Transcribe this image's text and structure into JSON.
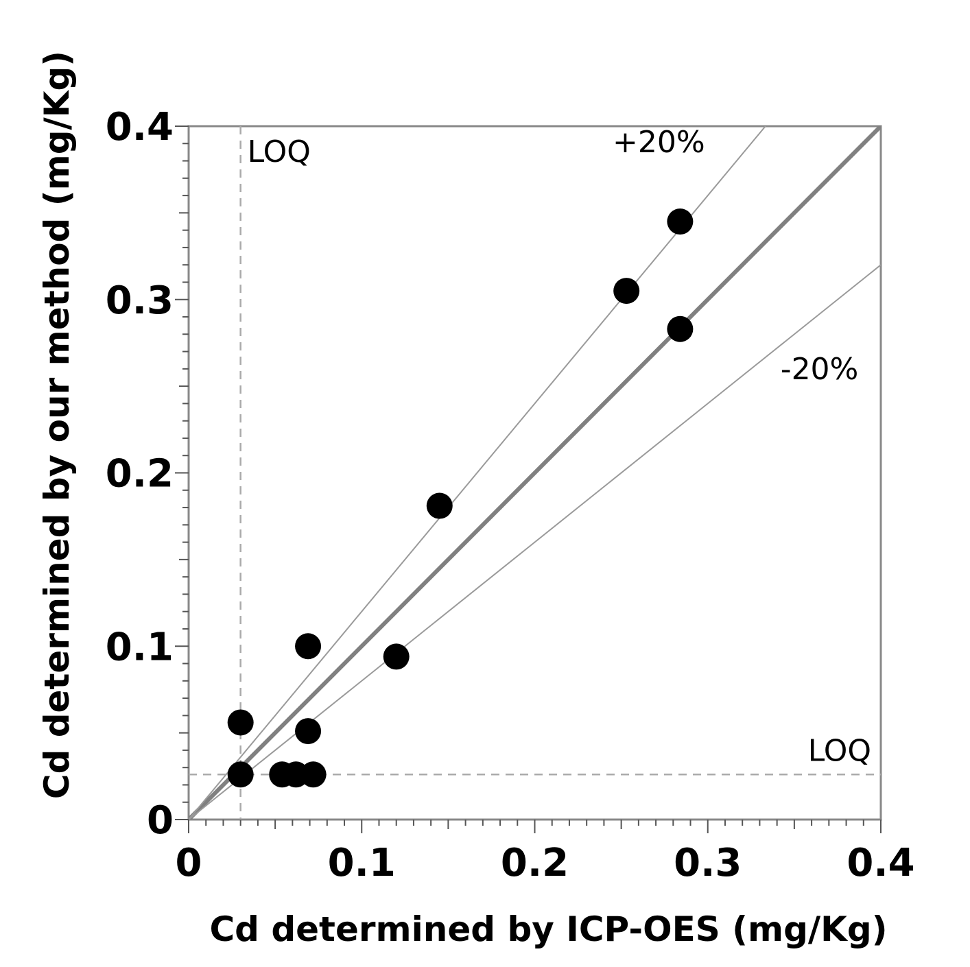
{
  "chart_data": {
    "type": "scatter",
    "xlabel": "Cd determined by ICP-OES (mg/Kg)",
    "ylabel": "Cd determined by our method (mg/Kg)",
    "xlim": [
      0,
      0.4
    ],
    "ylim": [
      0,
      0.4
    ],
    "xticks": [
      "0",
      "0.1",
      "0.2",
      "0.3",
      "0.4"
    ],
    "yticks": [
      "0",
      "0.1",
      "0.2",
      "0.3",
      "0.4"
    ],
    "x_tick_values": [
      0,
      0.1,
      0.2,
      0.3,
      0.4
    ],
    "y_tick_values": [
      0,
      0.1,
      0.2,
      0.3,
      0.4
    ],
    "minor_tick_step": 0.01,
    "grid": false,
    "points": [
      {
        "x": 0.03,
        "y": 0.056
      },
      {
        "x": 0.03,
        "y": 0.026
      },
      {
        "x": 0.054,
        "y": 0.026
      },
      {
        "x": 0.062,
        "y": 0.026
      },
      {
        "x": 0.072,
        "y": 0.026
      },
      {
        "x": 0.069,
        "y": 0.051
      },
      {
        "x": 0.069,
        "y": 0.1
      },
      {
        "x": 0.12,
        "y": 0.094
      },
      {
        "x": 0.145,
        "y": 0.181
      },
      {
        "x": 0.253,
        "y": 0.305
      },
      {
        "x": 0.284,
        "y": 0.345
      },
      {
        "x": 0.284,
        "y": 0.283
      }
    ],
    "reference_lines": [
      {
        "name": "identity",
        "slope": 1.0
      },
      {
        "name": "+20%",
        "slope": 1.2,
        "label": "+20%",
        "label_at": [
          0.245,
          0.385
        ]
      },
      {
        "name": "-20%",
        "slope": 0.8,
        "label": "-20%",
        "label_at": [
          0.342,
          0.254
        ]
      }
    ],
    "loq": {
      "x": 0.03,
      "y": 0.026,
      "label_x": "LOQ",
      "label_y": "LOQ"
    }
  }
}
